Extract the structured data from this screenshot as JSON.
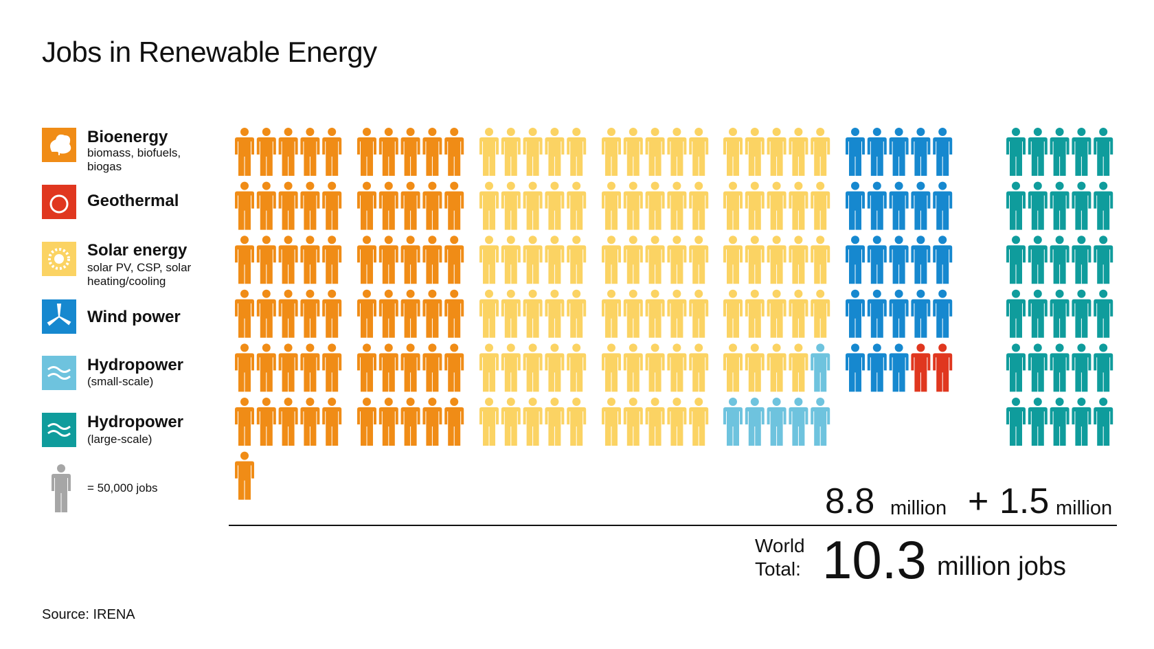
{
  "chart_data": {
    "type": "pictograph",
    "title": "Jobs in Renewable Energy",
    "unit": {
      "value": 50000,
      "label": "= 50,000 jobs"
    },
    "series": [
      {
        "name": "Bioenergy",
        "description": "biomass, biofuels, biogas",
        "color": "#f08c16",
        "values": [
          3050000
        ]
      },
      {
        "name": "Geothermal",
        "color": "#e0371f",
        "values": [
          100000
        ]
      },
      {
        "name": "Solar energy",
        "description": "solar PV, CSP, solar heating/cooling",
        "color": "#fbd363",
        "values": [
          4200000
        ]
      },
      {
        "name": "Wind power",
        "color": "#1688cf",
        "values": [
          1150000
        ]
      },
      {
        "name": "Hydropower",
        "description": "(small-scale)",
        "color": "#6ec3de",
        "values": [
          300000
        ]
      },
      {
        "name": "Hydropower",
        "description": "(large-scale)",
        "color": "#0f9c9c",
        "values": [
          1500000
        ]
      }
    ],
    "subtotal": {
      "value": 8.8,
      "unit": "million"
    },
    "plus": "+",
    "addition": {
      "value": 1.5,
      "unit": "million"
    },
    "total_label": "World Total:",
    "total": {
      "value": 10.3,
      "unit": "million jobs"
    },
    "source": "Source: IRENA"
  }
}
